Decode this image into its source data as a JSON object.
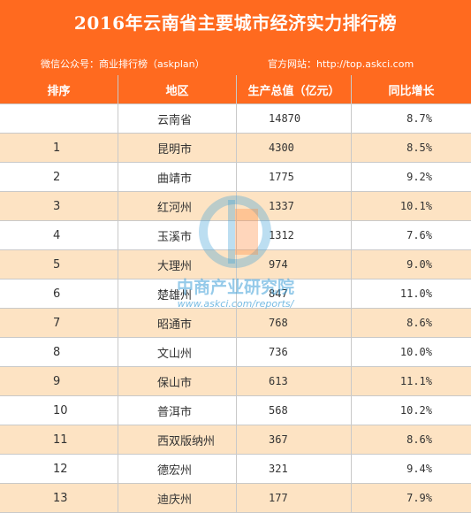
{
  "header": {
    "title": "2016年云南省主要城市经济实力排行榜",
    "wechat": "微信公众号：商业排行榜（askplan）",
    "website": "官方网站：http://top.askci.com"
  },
  "table": {
    "columns": [
      "排序",
      "地区",
      "生产总值（亿元）",
      "同比增长"
    ],
    "rows": [
      {
        "rank": "",
        "region": "云南省",
        "gdp": "14870",
        "growth": "8.7%"
      },
      {
        "rank": "1",
        "region": "昆明市",
        "gdp": "4300",
        "growth": "8.5%"
      },
      {
        "rank": "2",
        "region": "曲靖市",
        "gdp": "1775",
        "growth": "9.2%"
      },
      {
        "rank": "3",
        "region": "红河州",
        "gdp": "1337",
        "growth": "10.1%"
      },
      {
        "rank": "4",
        "region": "玉溪市",
        "gdp": "1312",
        "growth": "7.6%"
      },
      {
        "rank": "5",
        "region": "大理州",
        "gdp": "974",
        "growth": "9.0%"
      },
      {
        "rank": "6",
        "region": "楚雄州",
        "gdp": "847",
        "growth": "11.0%"
      },
      {
        "rank": "7",
        "region": "昭通市",
        "gdp": "768",
        "growth": "8.6%"
      },
      {
        "rank": "8",
        "region": "文山州",
        "gdp": "736",
        "growth": "10.0%"
      },
      {
        "rank": "9",
        "region": "保山市",
        "gdp": "613",
        "growth": "11.1%"
      },
      {
        "rank": "10",
        "region": "普洱市",
        "gdp": "568",
        "growth": "10.2%"
      },
      {
        "rank": "11",
        "region": "西双版纳州",
        "gdp": "367",
        "growth": "8.6%"
      },
      {
        "rank": "12",
        "region": "德宏州",
        "gdp": "321",
        "growth": "9.4%"
      },
      {
        "rank": "13",
        "region": "迪庆州",
        "gdp": "177",
        "growth": "7.9%"
      }
    ]
  },
  "watermark": {
    "text": "中商产业研究院",
    "url": "www.askci.com/reports/"
  },
  "colors": {
    "header": "#ff6a1f",
    "row_alt": "#fde3c3",
    "watermark": "#3fa0d8"
  }
}
